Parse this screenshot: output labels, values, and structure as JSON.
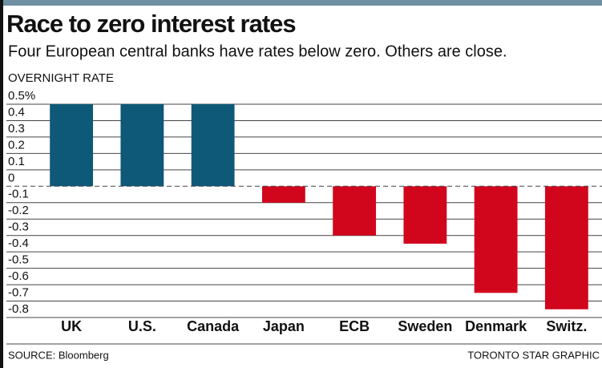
{
  "chart_data": {
    "type": "bar",
    "title": "Race to zero interest rates",
    "subtitle": "Four European central banks have rates below zero. Others are close.",
    "y_label": "OVERNIGHT RATE",
    "categories": [
      "UK",
      "U.S.",
      "Canada",
      "Japan",
      "ECB",
      "Sweden",
      "Denmark",
      "Switz."
    ],
    "values": [
      0.5,
      0.5,
      0.5,
      -0.1,
      -0.3,
      -0.35,
      -0.65,
      -0.75
    ],
    "colors": [
      "#0e5878",
      "#0e5878",
      "#0e5878",
      "#d1061d",
      "#d1061d",
      "#d1061d",
      "#d1061d",
      "#d1061d"
    ],
    "ylim": [
      -0.8,
      0.5
    ],
    "yticks": [
      {
        "value": 0.5,
        "label": "0.5%"
      },
      0.4,
      0.3,
      0.2,
      0.1,
      0,
      -0.1,
      -0.2,
      -0.3,
      -0.4,
      -0.5,
      -0.6,
      -0.7,
      -0.8
    ],
    "grid": true,
    "source": "SOURCE: Bloomberg",
    "credit": "TORONTO STAR GRAPHIC"
  }
}
